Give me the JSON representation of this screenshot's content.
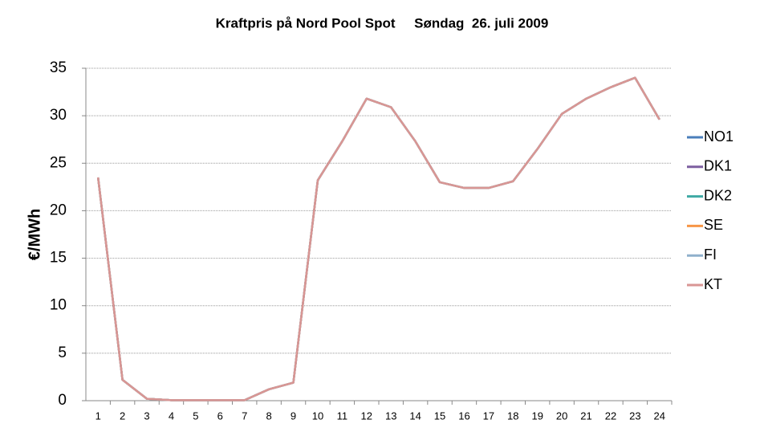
{
  "chart_data": {
    "type": "line",
    "title": "Kraftpris på Nord Pool Spot     Søndag  26. juli 2009",
    "y_label": "€/MWh",
    "categories": [
      "1",
      "2",
      "3",
      "4",
      "5",
      "6",
      "7",
      "8",
      "9",
      "10",
      "11",
      "12",
      "13",
      "14",
      "15",
      "16",
      "17",
      "18",
      "19",
      "20",
      "21",
      "22",
      "23",
      "24"
    ],
    "series": [
      {
        "name": "NO1",
        "color": "#4a7ebb",
        "values": [
          23.5,
          2.2,
          0.2,
          0.05,
          0.05,
          0.05,
          0.05,
          1.2,
          1.9,
          23.2,
          27.3,
          31.8,
          30.9,
          27.3,
          23.0,
          22.4,
          22.4,
          23.1,
          26.5,
          30.2,
          31.8,
          33.0,
          34.0,
          29.6
        ]
      },
      {
        "name": "DK1",
        "color": "#7d5fa0",
        "values": [
          23.5,
          2.2,
          0.2,
          0.05,
          0.05,
          0.05,
          0.05,
          1.2,
          1.9,
          23.2,
          27.3,
          31.8,
          30.9,
          27.3,
          23.0,
          22.4,
          22.4,
          23.1,
          26.5,
          30.2,
          31.8,
          33.0,
          34.0,
          29.6
        ]
      },
      {
        "name": "DK2",
        "color": "#3fa9a4",
        "values": [
          23.5,
          2.2,
          0.2,
          0.05,
          0.05,
          0.05,
          0.05,
          1.2,
          1.9,
          23.2,
          27.3,
          31.8,
          30.9,
          27.3,
          23.0,
          22.4,
          22.4,
          23.1,
          26.5,
          30.2,
          31.8,
          33.0,
          34.0,
          29.6
        ]
      },
      {
        "name": "SE",
        "color": "#f79646",
        "values": [
          23.5,
          2.2,
          0.2,
          0.05,
          0.05,
          0.05,
          0.05,
          1.2,
          1.9,
          23.2,
          27.3,
          31.8,
          30.9,
          27.3,
          23.0,
          22.4,
          22.4,
          23.1,
          26.5,
          30.2,
          31.8,
          33.0,
          34.0,
          29.6
        ]
      },
      {
        "name": "FI",
        "color": "#8fb0cc",
        "values": [
          23.5,
          2.2,
          0.2,
          0.05,
          0.05,
          0.05,
          0.05,
          1.2,
          1.9,
          23.2,
          27.3,
          31.8,
          30.9,
          27.3,
          23.0,
          22.4,
          22.4,
          23.1,
          26.5,
          30.2,
          31.8,
          33.0,
          34.0,
          29.6
        ]
      },
      {
        "name": "KT",
        "color": "#d99694",
        "values": [
          23.5,
          2.2,
          0.2,
          0.05,
          0.05,
          0.05,
          0.05,
          1.2,
          1.9,
          23.2,
          27.3,
          31.8,
          30.9,
          27.3,
          23.0,
          22.4,
          22.4,
          23.1,
          26.5,
          30.2,
          31.8,
          33.0,
          34.0,
          29.6
        ]
      }
    ],
    "ylim": [
      0,
      35
    ],
    "yticks": [
      0,
      5,
      10,
      15,
      20,
      25,
      30,
      35
    ],
    "grid": true,
    "legend": "right"
  }
}
